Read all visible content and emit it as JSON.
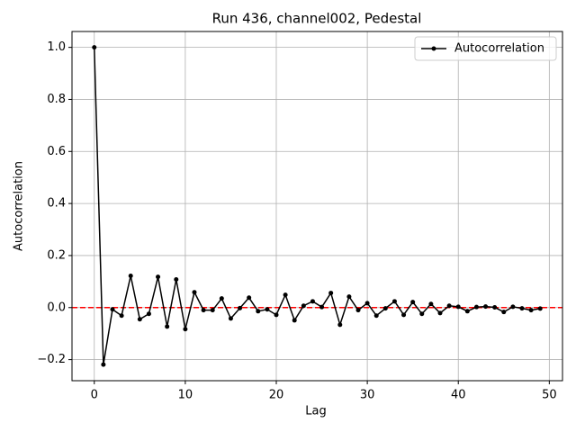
{
  "chart_data": {
    "type": "line",
    "title": "Run 436, channel002, Pedestal",
    "x_label": "Lag",
    "y_label": "Autocorrelation",
    "x": [
      0,
      1,
      2,
      3,
      4,
      5,
      6,
      7,
      8,
      9,
      10,
      11,
      12,
      13,
      14,
      15,
      16,
      17,
      18,
      19,
      20,
      21,
      22,
      23,
      24,
      25,
      26,
      27,
      28,
      29,
      30,
      31,
      32,
      33,
      34,
      35,
      36,
      37,
      38,
      39,
      40,
      41,
      42,
      43,
      44,
      45,
      46,
      47,
      48,
      49
    ],
    "series": [
      {
        "name": "Autocorrelation",
        "color": "#000000",
        "values": [
          1.0,
          -0.219,
          -0.007,
          -0.031,
          0.122,
          -0.045,
          -0.024,
          0.118,
          -0.073,
          0.108,
          -0.083,
          0.059,
          -0.01,
          -0.01,
          0.035,
          -0.042,
          -0.002,
          0.038,
          -0.014,
          -0.007,
          -0.028,
          0.049,
          -0.049,
          0.007,
          0.024,
          0.002,
          0.056,
          -0.066,
          0.042,
          -0.01,
          0.017,
          -0.031,
          -0.003,
          0.024,
          -0.028,
          0.021,
          -0.024,
          0.014,
          -0.021,
          0.007,
          0.003,
          -0.014,
          0.002,
          0.004,
          0.001,
          -0.017,
          0.003,
          -0.003,
          -0.01,
          -0.004
        ]
      }
    ],
    "reference_line": {
      "value": 0,
      "color": "#ff0000",
      "style": "dashed"
    },
    "xlim": [
      -2.45,
      51.45
    ],
    "xticks": [
      0,
      10,
      20,
      30,
      40,
      50
    ],
    "ylim": [
      -0.281,
      1.061
    ],
    "yticks": [
      {
        "value": -0.2,
        "label": "−0.2"
      },
      {
        "value": 0,
        "label": "0.0"
      },
      {
        "value": 0.2,
        "label": "0.2"
      },
      {
        "value": 0.4,
        "label": "0.4"
      },
      {
        "value": 0.6,
        "label": "0.6"
      },
      {
        "value": 0.8,
        "label": "0.8"
      },
      {
        "value": 1.0,
        "label": "1.0"
      }
    ],
    "grid": true,
    "legend": "upper right"
  }
}
